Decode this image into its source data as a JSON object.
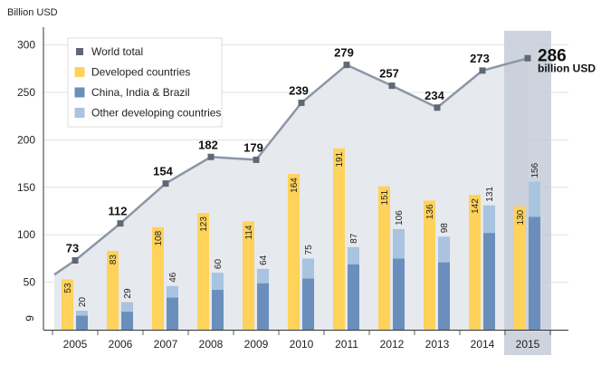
{
  "chart_data": {
    "type": "bar",
    "ylabel": "Billion USD",
    "ylim": [
      0,
      300
    ],
    "yticks": [
      50,
      100,
      150,
      200,
      250,
      300
    ],
    "ytick_labels": [
      "50",
      "100",
      "150",
      "200",
      "250",
      "300"
    ],
    "stray_tick_label": "9",
    "categories": [
      "2005",
      "2006",
      "2007",
      "2008",
      "2009",
      "2010",
      "2011",
      "2012",
      "2013",
      "2014",
      "2015"
    ],
    "highlight_category": "2015",
    "line_start_value": 58,
    "series": [
      {
        "name": "World total",
        "type": "line",
        "color": "#8c96a6",
        "values": [
          73,
          112,
          154,
          182,
          179,
          239,
          279,
          257,
          234,
          273,
          286
        ],
        "labels": [
          "73",
          "112",
          "154",
          "182",
          "179",
          "239",
          "279",
          "257",
          "234",
          "273",
          "286"
        ]
      },
      {
        "name": "Developed countries",
        "type": "bar",
        "color": "#ffd25a",
        "values": [
          53,
          83,
          108,
          123,
          114,
          164,
          191,
          151,
          136,
          142,
          130
        ],
        "labels": [
          "53",
          "83",
          "108",
          "123",
          "114",
          "164",
          "191",
          "151",
          "136",
          "142",
          "130"
        ]
      },
      {
        "name": "China, India & Brazil",
        "type": "stacked-bar",
        "color": "#6b8fbc",
        "values": [
          15,
          19,
          34,
          42,
          49,
          54,
          69,
          75,
          71,
          102,
          119
        ]
      },
      {
        "name": "Other developing countries",
        "type": "stacked-bar",
        "color": "#a8c4e0",
        "values": [
          5,
          10,
          12,
          18,
          15,
          21,
          18,
          31,
          27,
          29,
          37
        ]
      }
    ],
    "developing_totals": [
      "20",
      "29",
      "46",
      "60",
      "64",
      "75",
      "87",
      "106",
      "98",
      "131",
      "156"
    ],
    "final_annotation": {
      "value": "286",
      "unit": "billion USD"
    },
    "legend": {
      "position": "top-left",
      "entries": [
        "World total",
        "Developed countries",
        "China, India & Brazil",
        "Other developing countries"
      ]
    }
  }
}
